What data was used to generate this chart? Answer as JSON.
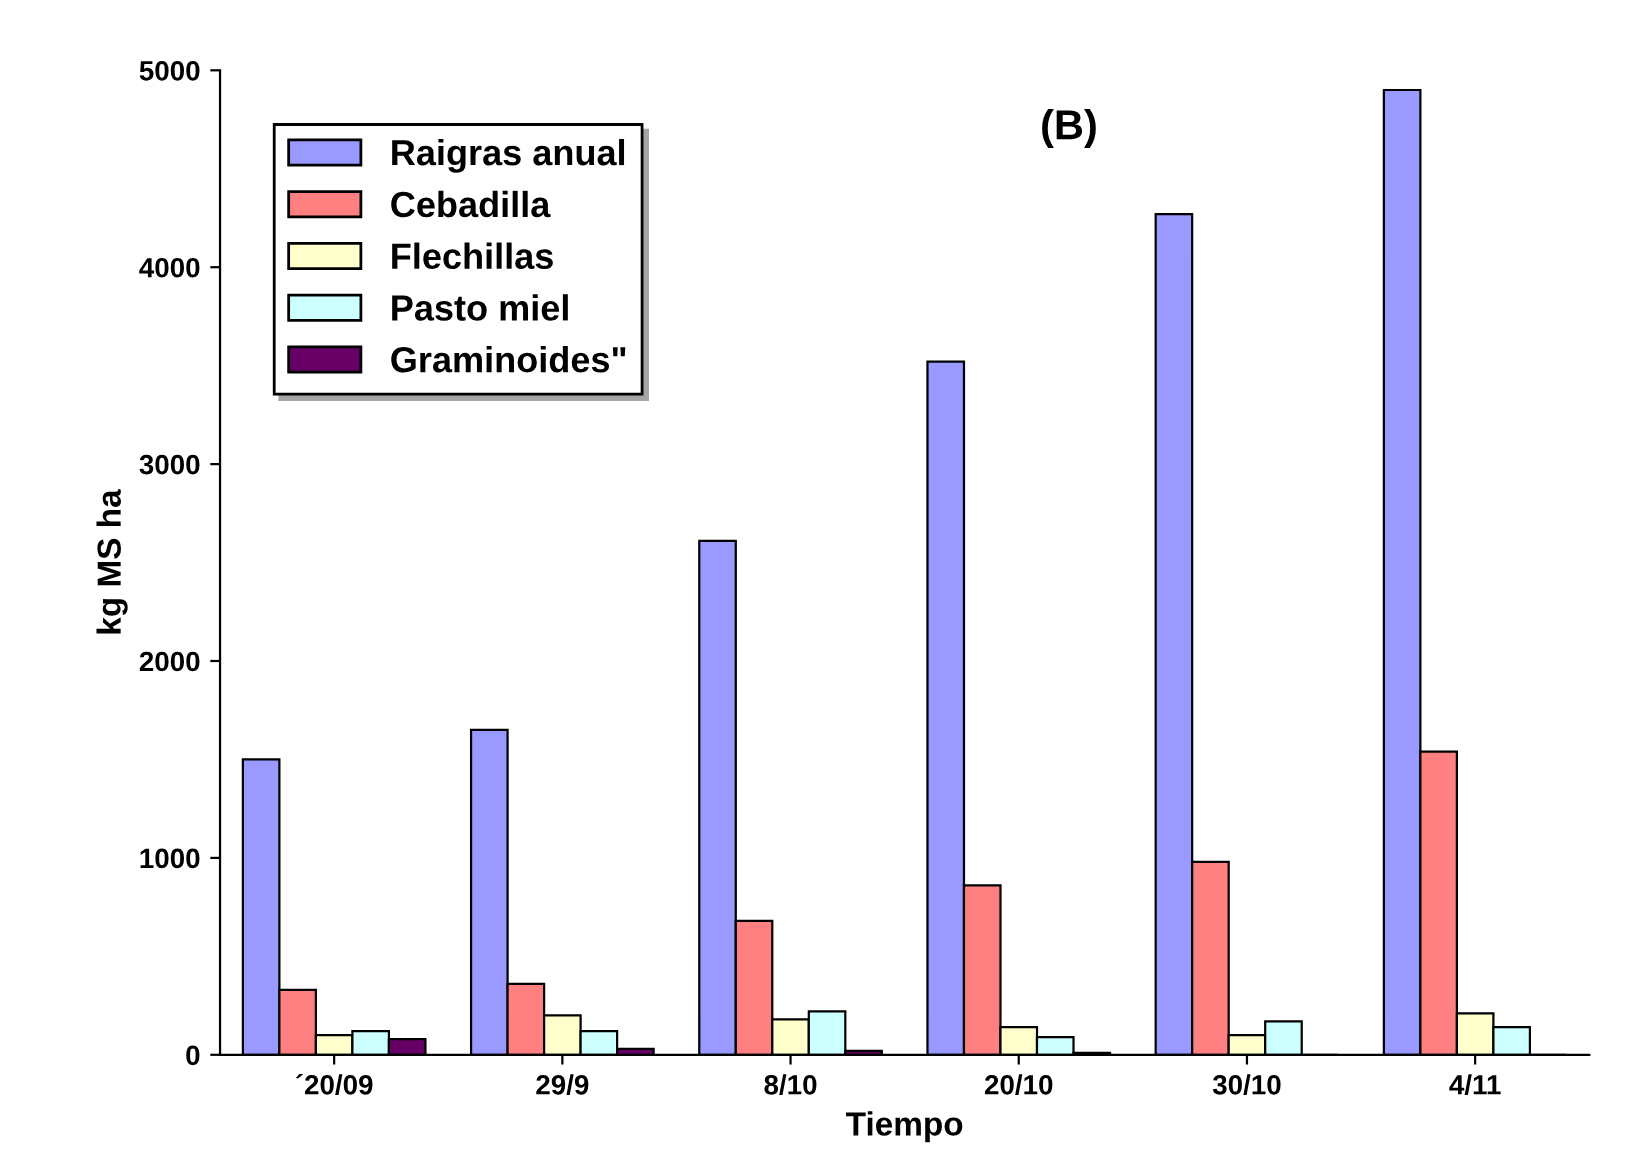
{
  "chart_data": {
    "type": "bar",
    "title": "(B)",
    "xlabel": "Tiempo",
    "ylabel": "kg MS ha",
    "categories": [
      "´20/09",
      "29/9",
      "8/10",
      "20/10",
      "30/10",
      "4/11"
    ],
    "series": [
      {
        "name": "Raigras anual",
        "color": "#9999ff",
        "values": [
          1500,
          1650,
          2610,
          3520,
          4270,
          4900
        ]
      },
      {
        "name": "Cebadilla",
        "color": "#ff8080",
        "values": [
          330,
          360,
          680,
          860,
          980,
          1540
        ]
      },
      {
        "name": "Flechillas",
        "color": "#ffffcc",
        "values": [
          100,
          200,
          180,
          140,
          100,
          210
        ]
      },
      {
        "name": "Pasto miel",
        "color": "#ccffff",
        "values": [
          120,
          120,
          220,
          90,
          170,
          140
        ]
      },
      {
        "name": "Graminoides\"",
        "color": "#660066",
        "values": [
          80,
          30,
          20,
          10,
          0,
          0
        ]
      }
    ],
    "ylim": [
      0,
      5000
    ],
    "yticks": [
      0,
      1000,
      2000,
      3000,
      4000,
      5000
    ],
    "grid": false,
    "legend": "top left"
  }
}
